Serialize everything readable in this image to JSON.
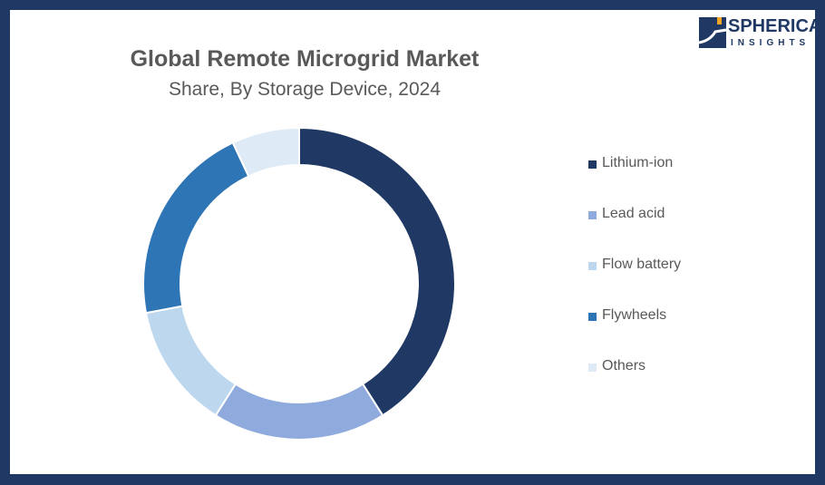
{
  "chart_data": {
    "type": "pie",
    "title": "Global Remote Microgrid Market",
    "subtitle": "Share, By Storage Device, 2024",
    "legend_position": "right",
    "donut": true,
    "categories": [
      "Lithium-ion",
      "Lead acid",
      "Flow battery",
      "Flywheels",
      "Others"
    ],
    "values": [
      41,
      18,
      13,
      21,
      7
    ],
    "colors": [
      "#1f3864",
      "#8faadc",
      "#bdd7ee",
      "#2e75b6",
      "#deebf7"
    ]
  },
  "logo": {
    "line1": "SPHERICAL",
    "line2": "INSIGHTS"
  },
  "frame_color": "#1f3864"
}
